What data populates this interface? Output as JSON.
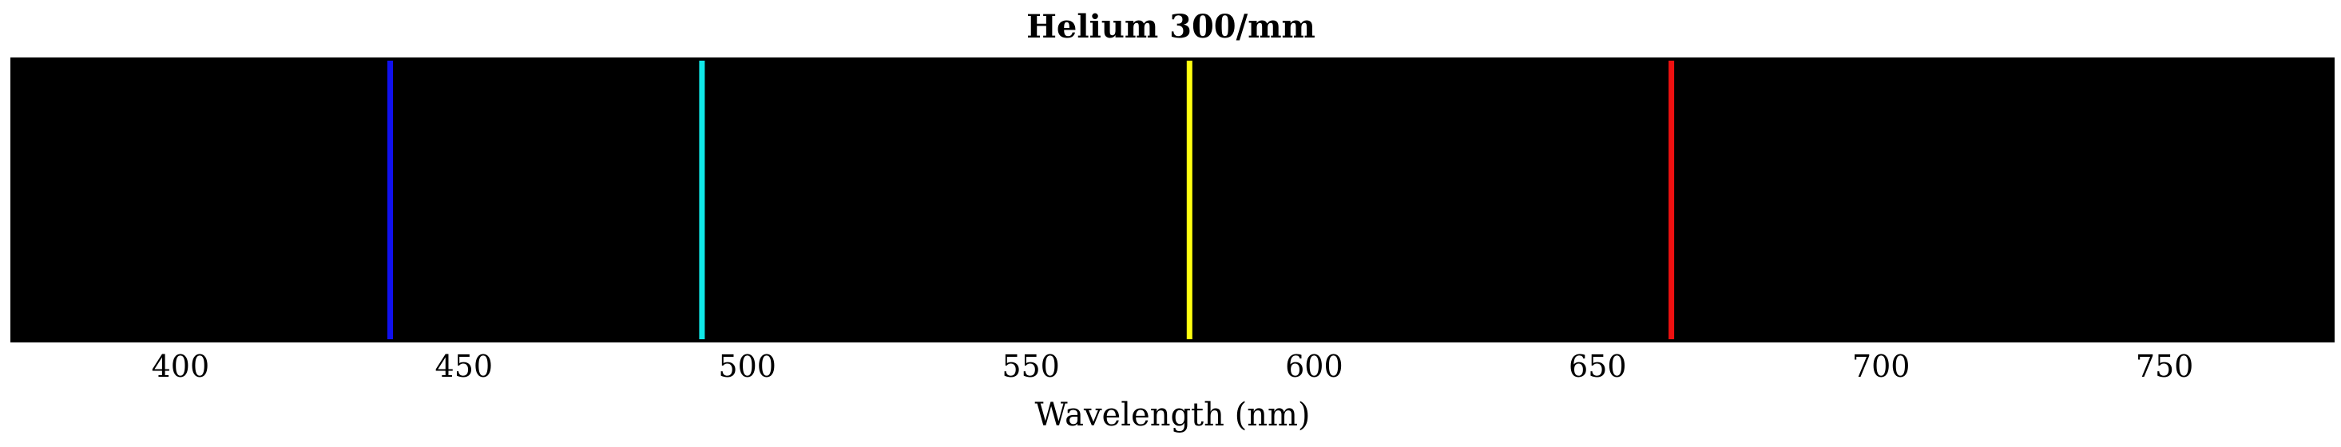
{
  "chart_data": {
    "type": "spectrum",
    "title": "Helium 300/mm",
    "xlabel": "Wavelength (nm)",
    "ylabel": "",
    "xlim": [
      370,
      780
    ],
    "xticks": [
      400,
      450,
      500,
      550,
      600,
      650,
      700,
      750
    ],
    "xtick_labels": [
      "400",
      "450",
      "500",
      "550",
      "600",
      "650",
      "700",
      "750"
    ],
    "grid": false,
    "background": "#000000",
    "lines": [
      {
        "wavelength": 437,
        "color": "#1010ee"
      },
      {
        "wavelength": 492,
        "color": "#10e8e8"
      },
      {
        "wavelength": 578,
        "color": "#ffff10"
      },
      {
        "wavelength": 663,
        "color": "#ee1010"
      }
    ]
  }
}
